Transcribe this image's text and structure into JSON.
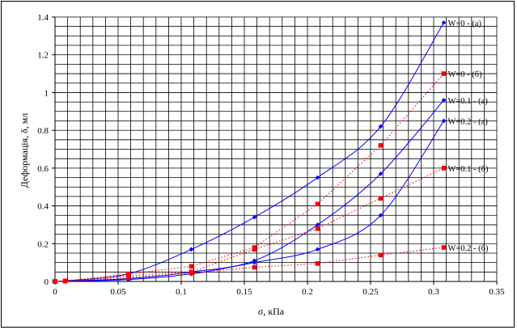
{
  "chart_data": {
    "type": "scatter",
    "xlabel": "σ, кПа",
    "ylabel": "Деформація, δ, мл",
    "xlim": [
      0,
      0.35
    ],
    "ylim": [
      0,
      1.4
    ],
    "x_ticks": [
      0,
      0.05,
      0.1,
      0.15,
      0.2,
      0.25,
      0.3,
      0.35
    ],
    "x_tick_labels": [
      "0",
      "0.05",
      "0.1",
      "0.15",
      "0.2",
      "0.25",
      "0.3",
      "0.35"
    ],
    "y_ticks": [
      0,
      0.2,
      0.4,
      0.6,
      0.8,
      1.0,
      1.2,
      1.4
    ],
    "y_tick_labels": [
      "0",
      "0.2",
      "0.4",
      "0.6",
      "0.8",
      "1",
      "1.2",
      "1.4"
    ],
    "x_minor_step": 0.01,
    "y_minor_step": 0.05,
    "grid": true,
    "legend": "labels-at-line-ends",
    "series": [
      {
        "name": "W=0 - (a)",
        "color": "#0000ff",
        "line": "solid",
        "marker": "diamond",
        "x": [
          0,
          0.008,
          0.058,
          0.108,
          0.158,
          0.208,
          0.258,
          0.308
        ],
        "y": [
          0,
          0.003,
          0.04,
          0.17,
          0.34,
          0.55,
          0.82,
          1.37
        ]
      },
      {
        "name": "W=0 - (б)",
        "color": "#ff0000",
        "line": "dotted",
        "marker": "square",
        "x": [
          0,
          0.008,
          0.058,
          0.108,
          0.158,
          0.208,
          0.258,
          0.308
        ],
        "y": [
          0,
          0.003,
          0.04,
          0.08,
          0.18,
          0.41,
          0.72,
          1.1
        ]
      },
      {
        "name": "W=0.1 - (a)",
        "color": "#0000ff",
        "line": "solid",
        "marker": "diamond",
        "x": [
          0,
          0.008,
          0.058,
          0.108,
          0.158,
          0.208,
          0.258,
          0.308
        ],
        "y": [
          0,
          0.002,
          0.015,
          0.05,
          0.11,
          0.3,
          0.57,
          0.96
        ]
      },
      {
        "name": "W=0.2 - (a)",
        "color": "#0000ff",
        "line": "solid",
        "marker": "diamond",
        "x": [
          0,
          0.008,
          0.058,
          0.108,
          0.158,
          0.208,
          0.258,
          0.308
        ],
        "y": [
          0,
          0.002,
          0.01,
          0.04,
          0.1,
          0.17,
          0.35,
          0.85
        ]
      },
      {
        "name": "W=0.1 - (б)",
        "color": "#ff0000",
        "line": "dotted",
        "marker": "square",
        "x": [
          0,
          0.008,
          0.058,
          0.108,
          0.158,
          0.208,
          0.258,
          0.308
        ],
        "y": [
          0,
          0.002,
          0.03,
          0.05,
          0.17,
          0.28,
          0.44,
          0.6
        ]
      },
      {
        "name": "W=0.2 - (б)",
        "color": "#ff0000",
        "line": "dotted",
        "marker": "square",
        "x": [
          0,
          0.008,
          0.058,
          0.108,
          0.158,
          0.208,
          0.258,
          0.308
        ],
        "y": [
          0,
          0.002,
          0.02,
          0.045,
          0.075,
          0.095,
          0.14,
          0.18
        ]
      }
    ]
  }
}
